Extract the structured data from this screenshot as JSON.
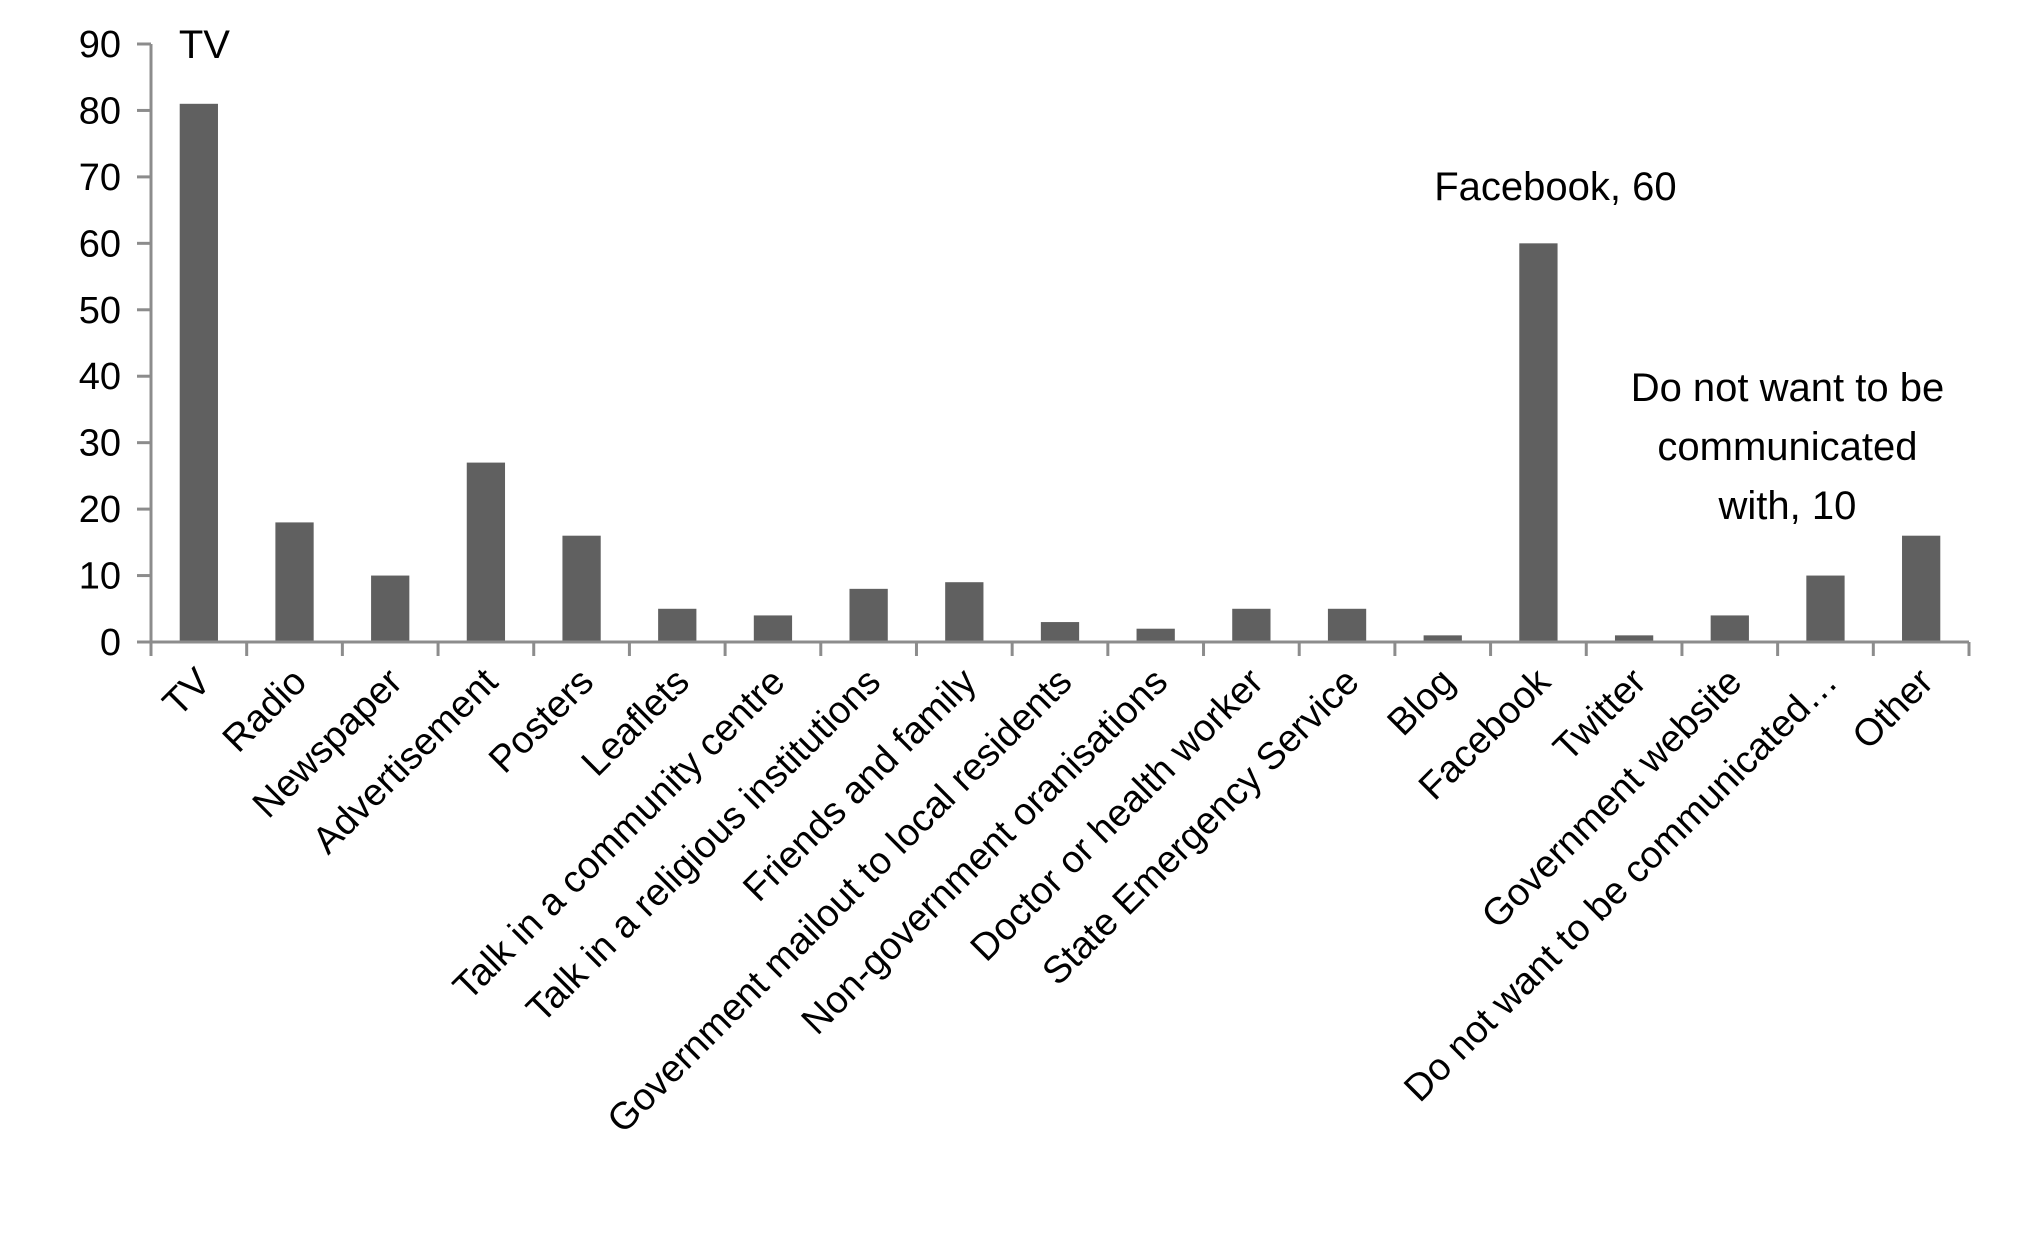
{
  "chart_data": {
    "type": "bar",
    "title": "",
    "xlabel": "",
    "ylabel": "",
    "ylim": [
      0,
      90
    ],
    "yticks": [
      0,
      10,
      20,
      30,
      40,
      50,
      60,
      70,
      80,
      90
    ],
    "grid": false,
    "legend": "none",
    "bar_color": "#606060",
    "axis_color": "#8c8c8c",
    "categories": [
      "TV",
      "Radio",
      "Newspaper",
      "Advertisement",
      "Posters",
      "Leaflets",
      "Talk in a community centre",
      "Talk in a religious institutions",
      "Friends and family",
      "Government mailout to local residents",
      "Non-government oranisations",
      "Doctor or health worker",
      "State Emergency Service",
      "Blog",
      "Facebook",
      "Twitter",
      "Government website",
      "Do not want to be communicated…",
      "Other"
    ],
    "values": [
      81,
      18,
      10,
      27,
      16,
      5,
      4,
      8,
      9,
      3,
      2,
      5,
      5,
      1,
      60,
      1,
      4,
      10,
      16
    ],
    "annotations": [
      {
        "category_index": 0,
        "lines": [
          "TV"
        ]
      },
      {
        "category_index": 14,
        "lines": [
          "Facebook, 60"
        ]
      },
      {
        "category_index": 17,
        "lines": [
          "Do not want to be",
          "communicated",
          "with, 10"
        ]
      }
    ]
  }
}
